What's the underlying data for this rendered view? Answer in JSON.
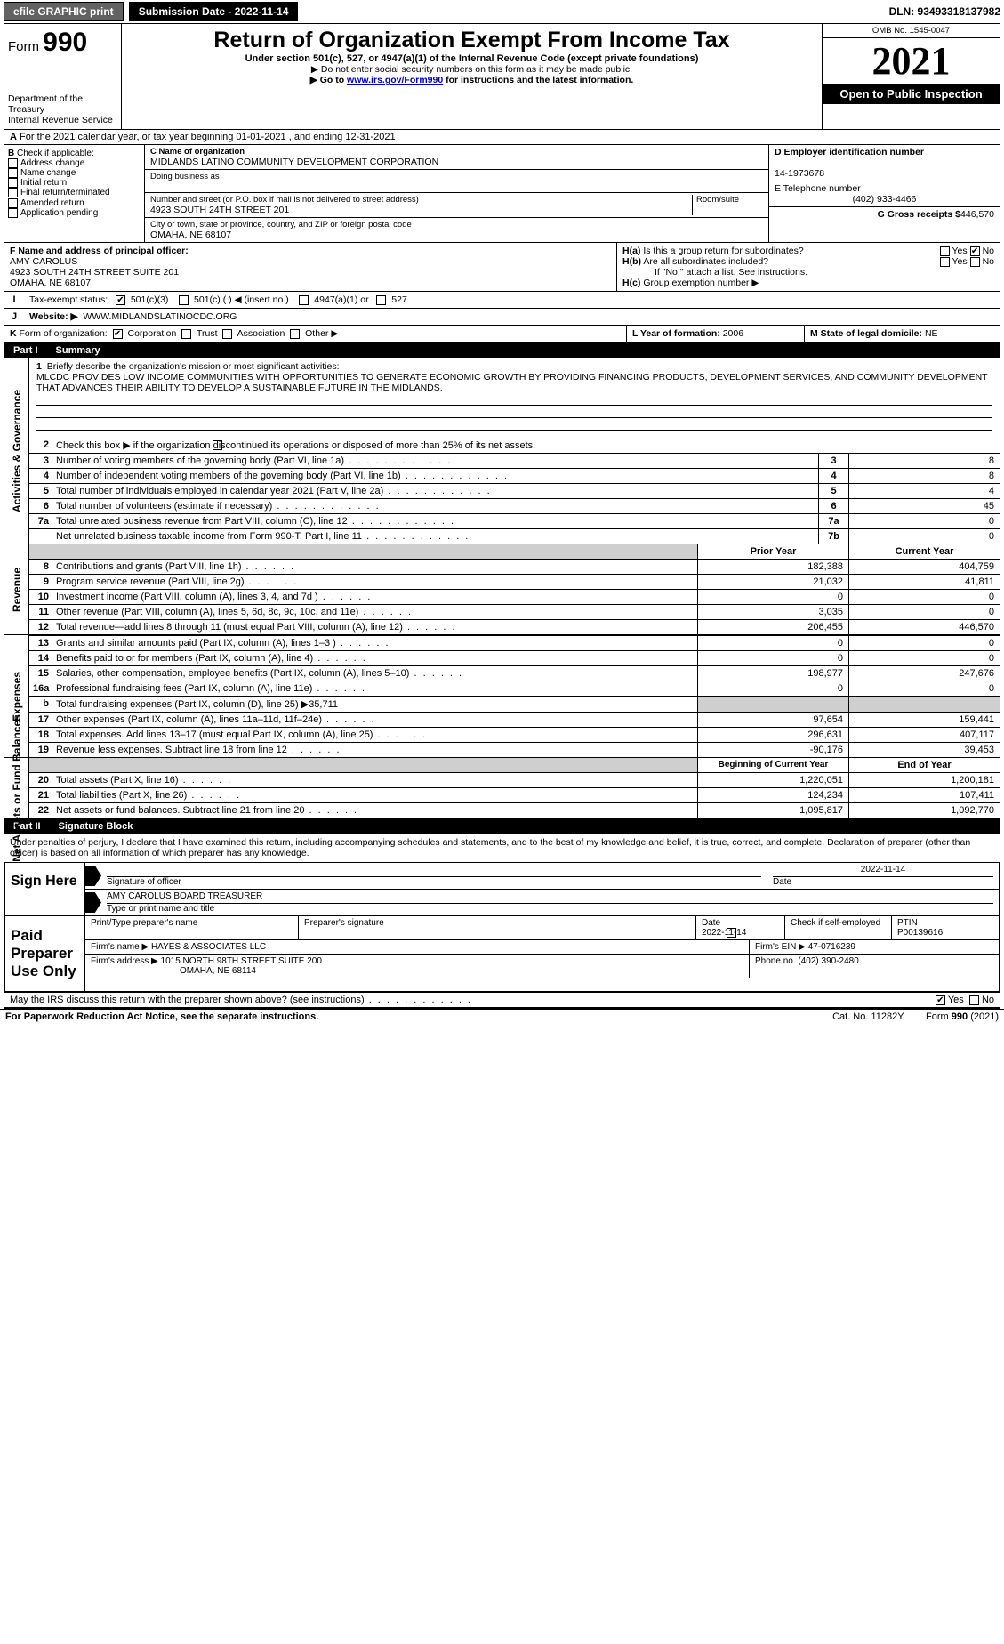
{
  "topbar": {
    "efile": "efile GRAPHIC print",
    "submission_label": "Submission Date - 2022-11-14",
    "dln": "DLN: 93493318137982"
  },
  "header": {
    "form_word": "Form",
    "form_num": "990",
    "dept": "Department of the Treasury",
    "irs": "Internal Revenue Service",
    "title": "Return of Organization Exempt From Income Tax",
    "sub1": "Under section 501(c), 527, or 4947(a)(1) of the Internal Revenue Code (except private foundations)",
    "sub2": "▶ Do not enter social security numbers on this form as it may be made public.",
    "sub3_pre": "▶ Go to ",
    "sub3_link": "www.irs.gov/Form990",
    "sub3_post": " for instructions and the latest information.",
    "omb": "OMB No. 1545-0047",
    "year": "2021",
    "open": "Open to Public Inspection"
  },
  "A": {
    "text": "For the 2021 calendar year, or tax year beginning 01-01-2021    , and ending 12-31-2021"
  },
  "B": {
    "label": "Check if applicable:",
    "items": [
      "Address change",
      "Name change",
      "Initial return",
      "Final return/terminated",
      "Amended return",
      "Application pending"
    ]
  },
  "C": {
    "name_label": "C Name of organization",
    "name": "MIDLANDS LATINO COMMUNITY DEVELOPMENT CORPORATION",
    "dba_label": "Doing business as",
    "addr_label": "Number and street (or P.O. box if mail is not delivered to street address)",
    "room_label": "Room/suite",
    "addr": "4923 SOUTH 24TH STREET 201",
    "city_label": "City or town, state or province, country, and ZIP or foreign postal code",
    "city": "OMAHA, NE  68107"
  },
  "D": {
    "label": "D Employer identification number",
    "val": "14-1973678"
  },
  "E": {
    "label": "E Telephone number",
    "val": "(402) 933-4466"
  },
  "G": {
    "label": "G Gross receipts $",
    "val": "446,570"
  },
  "F": {
    "label": "F Name and address of principal officer:",
    "name": "AMY CAROLUS",
    "addr1": "4923 SOUTH 24TH STREET SUITE 201",
    "addr2": "OMAHA, NE  68107"
  },
  "H": {
    "a": "Is this a group return for subordinates?",
    "b": "Are all subordinates included?",
    "ifno": "If \"No,\" attach a list. See instructions.",
    "c": "Group exemption number ▶",
    "yes": "Yes",
    "no": "No"
  },
  "I": {
    "label": "Tax-exempt status:",
    "o1": "501(c)(3)",
    "o2": "501(c) (   ) ◀ (insert no.)",
    "o3": "4947(a)(1) or",
    "o4": "527"
  },
  "J": {
    "label": "Website: ▶",
    "val": "WWW.MIDLANDSLATINOCDC.ORG"
  },
  "K": {
    "label": "Form of organization:",
    "corp": "Corporation",
    "trust": "Trust",
    "assoc": "Association",
    "other": "Other ▶"
  },
  "L": {
    "label": "L Year of formation:",
    "val": "2006"
  },
  "M": {
    "label": "M State of legal domicile:",
    "val": "NE"
  },
  "parts": {
    "p1": "Part I",
    "p1t": "Summary",
    "p2": "Part II",
    "p2t": "Signature Block"
  },
  "sides": {
    "gov": "Activities & Governance",
    "rev": "Revenue",
    "exp": "Expenses",
    "net": "Net Assets or Fund Balances"
  },
  "summary": {
    "l1_label": "Briefly describe the organization's mission or most significant activities:",
    "l1_text": "MLCDC PROVIDES LOW INCOME COMMUNITIES WITH OPPORTUNITIES TO GENERATE ECONOMIC GROWTH BY PROVIDING FINANCING PRODUCTS, DEVELOPMENT SERVICES, AND COMMUNITY DEVELOPMENT THAT ADVANCES THEIR ABILITY TO DEVELOP A SUSTAINABLE FUTURE IN THE MIDLANDS.",
    "l2": "Check this box ▶      if the organization discontinued its operations or disposed of more than 25% of its net assets.",
    "rows_gov": [
      {
        "n": "3",
        "t": "Number of voting members of the governing body (Part VI, line 1a)",
        "box": "3",
        "v": "8"
      },
      {
        "n": "4",
        "t": "Number of independent voting members of the governing body (Part VI, line 1b)",
        "box": "4",
        "v": "8"
      },
      {
        "n": "5",
        "t": "Total number of individuals employed in calendar year 2021 (Part V, line 2a)",
        "box": "5",
        "v": "4"
      },
      {
        "n": "6",
        "t": "Total number of volunteers (estimate if necessary)",
        "box": "6",
        "v": "45"
      },
      {
        "n": "7a",
        "t": "Total unrelated business revenue from Part VIII, column (C), line 12",
        "box": "7a",
        "v": "0"
      },
      {
        "n": "",
        "t": "Net unrelated business taxable income from Form 990-T, Part I, line 11",
        "box": "7b",
        "v": "0"
      }
    ],
    "hdr_prior": "Prior Year",
    "hdr_curr": "Current Year",
    "rows_rev": [
      {
        "n": "8",
        "t": "Contributions and grants (Part VIII, line 1h)",
        "p": "182,388",
        "c": "404,759"
      },
      {
        "n": "9",
        "t": "Program service revenue (Part VIII, line 2g)",
        "p": "21,032",
        "c": "41,811"
      },
      {
        "n": "10",
        "t": "Investment income (Part VIII, column (A), lines 3, 4, and 7d )",
        "p": "0",
        "c": "0"
      },
      {
        "n": "11",
        "t": "Other revenue (Part VIII, column (A), lines 5, 6d, 8c, 9c, 10c, and 11e)",
        "p": "3,035",
        "c": "0"
      },
      {
        "n": "12",
        "t": "Total revenue—add lines 8 through 11 (must equal Part VIII, column (A), line 12)",
        "p": "206,455",
        "c": "446,570"
      }
    ],
    "rows_exp": [
      {
        "n": "13",
        "t": "Grants and similar amounts paid (Part IX, column (A), lines 1–3 )",
        "p": "0",
        "c": "0"
      },
      {
        "n": "14",
        "t": "Benefits paid to or for members (Part IX, column (A), line 4)",
        "p": "0",
        "c": "0"
      },
      {
        "n": "15",
        "t": "Salaries, other compensation, employee benefits (Part IX, column (A), lines 5–10)",
        "p": "198,977",
        "c": "247,676"
      },
      {
        "n": "16a",
        "t": "Professional fundraising fees (Part IX, column (A), line 11e)",
        "p": "0",
        "c": "0"
      }
    ],
    "l16b": "Total fundraising expenses (Part IX, column (D), line 25) ▶35,711",
    "rows_exp2": [
      {
        "n": "17",
        "t": "Other expenses (Part IX, column (A), lines 11a–11d, 11f–24e)",
        "p": "97,654",
        "c": "159,441"
      },
      {
        "n": "18",
        "t": "Total expenses. Add lines 13–17 (must equal Part IX, column (A), line 25)",
        "p": "296,631",
        "c": "407,117"
      },
      {
        "n": "19",
        "t": "Revenue less expenses. Subtract line 18 from line 12",
        "p": "-90,176",
        "c": "39,453"
      }
    ],
    "hdr_beg": "Beginning of Current Year",
    "hdr_end": "End of Year",
    "rows_net": [
      {
        "n": "20",
        "t": "Total assets (Part X, line 16)",
        "p": "1,220,051",
        "c": "1,200,181"
      },
      {
        "n": "21",
        "t": "Total liabilities (Part X, line 26)",
        "p": "124,234",
        "c": "107,411"
      },
      {
        "n": "22",
        "t": "Net assets or fund balances. Subtract line 21 from line 20",
        "p": "1,095,817",
        "c": "1,092,770"
      }
    ]
  },
  "sig": {
    "penalty": "Under penalties of perjury, I declare that I have examined this return, including accompanying schedules and statements, and to the best of my knowledge and belief, it is true, correct, and complete. Declaration of preparer (other than officer) is based on all information of which preparer has any knowledge.",
    "sign": "Sign Here",
    "sig_officer": "Signature of officer",
    "date": "Date",
    "date_v": "2022-11-14",
    "name_line": "AMY CAROLUS  BOARD TREASURER",
    "type_name": "Type or print name and title",
    "paid": "Paid Preparer Use Only",
    "prep_name_l": "Print/Type preparer's name",
    "prep_sig_l": "Preparer's signature",
    "prep_date_l": "Date",
    "prep_date_v": "2022-11-14",
    "check_self": "Check       if self-employed",
    "ptin_l": "PTIN",
    "ptin_v": "P00139616",
    "firm_name_l": "Firm's name    ▶",
    "firm_name": "HAYES & ASSOCIATES LLC",
    "firm_ein_l": "Firm's EIN ▶",
    "firm_ein": "47-0716239",
    "firm_addr_l": "Firm's address ▶",
    "firm_addr1": "1015 NORTH 98TH STREET SUITE 200",
    "firm_addr2": "OMAHA, NE  68114",
    "phone_l": "Phone no.",
    "phone": "(402) 390-2480",
    "may": "May the IRS discuss this return with the preparer shown above? (see instructions)"
  },
  "footer": {
    "pra": "For Paperwork Reduction Act Notice, see the separate instructions.",
    "cat": "Cat. No. 11282Y",
    "form": "Form 990 (2021)"
  }
}
